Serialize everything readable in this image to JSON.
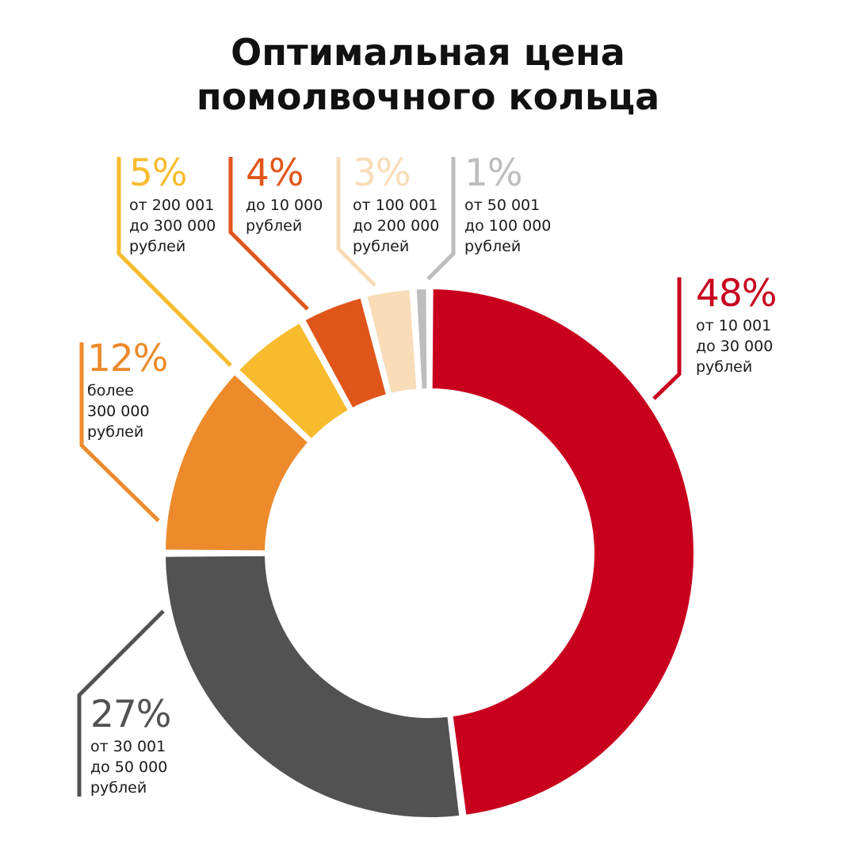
{
  "title": [
    "Оптимальная цена",
    "помолвочного кольца"
  ],
  "chart_data": {
    "type": "pie",
    "title": "Оптимальная цена помолвочного кольца",
    "unit": "%",
    "slices": [
      {
        "value": 48,
        "label": "48%",
        "desc": [
          "от 10 001",
          "до 30 000",
          "рублей"
        ],
        "color": "#c8001e"
      },
      {
        "value": 27,
        "label": "27%",
        "desc": [
          "от 30 001",
          "до 50 000",
          "рублей"
        ],
        "color": "#525252"
      },
      {
        "value": 12,
        "label": "12%",
        "desc": [
          "более",
          "300 000",
          "рублей"
        ],
        "color": "#ec8a2c"
      },
      {
        "value": 5,
        "label": "5%",
        "desc": [
          "от 200 001",
          "до 300 000",
          "рублей"
        ],
        "color": "#f8bb2e"
      },
      {
        "value": 4,
        "label": "4%",
        "desc": [
          "до 10 000",
          "рублей"
        ],
        "color": "#e0561a"
      },
      {
        "value": 3,
        "label": "3%",
        "desc": [
          "от 100 001",
          "до 200 000",
          "рублей"
        ],
        "color": "#f8dcb8"
      },
      {
        "value": 1,
        "label": "1%",
        "desc": [
          "от 50 001",
          "до 100 000",
          "рублей"
        ],
        "color": "#bdbdbd"
      }
    ]
  }
}
